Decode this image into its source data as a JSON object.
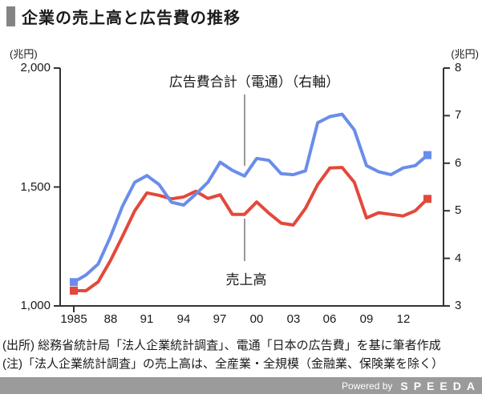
{
  "title": "企業の売上高と広告費の推移",
  "chart_data": {
    "type": "line",
    "x": [
      1985,
      1986,
      1987,
      1988,
      1989,
      1990,
      1991,
      1992,
      1993,
      1994,
      1995,
      1996,
      1997,
      1998,
      1999,
      2000,
      2001,
      2002,
      2003,
      2004,
      2005,
      2006,
      2007,
      2008,
      2009,
      2010,
      2011,
      2012,
      2013,
      2014
    ],
    "series": [
      {
        "name": "売上高",
        "axis": "left",
        "color": "#e2493b",
        "values": [
          1064,
          1064,
          1101,
          1190,
          1293,
          1400,
          1475,
          1465,
          1450,
          1458,
          1482,
          1452,
          1467,
          1385,
          1385,
          1437,
          1390,
          1348,
          1340,
          1410,
          1510,
          1580,
          1582,
          1520,
          1370,
          1392,
          1385,
          1378,
          1400,
          1450
        ]
      },
      {
        "name": "広告費合計（電通）（右軸）",
        "axis": "right",
        "color": "#6a8deb",
        "values": [
          3.5,
          3.65,
          3.88,
          4.45,
          5.1,
          5.6,
          5.74,
          5.55,
          5.18,
          5.12,
          5.35,
          5.6,
          6.02,
          5.85,
          5.73,
          6.1,
          6.06,
          5.78,
          5.76,
          5.84,
          6.85,
          6.98,
          7.03,
          6.7,
          5.95,
          5.82,
          5.76,
          5.9,
          5.95,
          6.17
        ]
      }
    ],
    "left_axis": {
      "unit": "(兆円)",
      "range": [
        1000,
        2000
      ],
      "tick_labels": [
        "2,000",
        "1,500",
        "1,000"
      ],
      "tick_values": [
        2000,
        1500,
        1000
      ]
    },
    "right_axis": {
      "unit": "(兆円)",
      "range": [
        3,
        8
      ],
      "tick_labels": [
        "8",
        "7",
        "6",
        "5",
        "4",
        "3"
      ],
      "tick_values": [
        8,
        7,
        6,
        5,
        4,
        3
      ]
    },
    "x_axis": {
      "tick_labels": [
        "1985",
        "88",
        "91",
        "94",
        "97",
        "00",
        "03",
        "06",
        "09",
        "12"
      ],
      "tick_years": [
        1985,
        1988,
        1991,
        1994,
        1997,
        2000,
        2003,
        2006,
        2009,
        2012
      ]
    },
    "annotations": [
      {
        "text": "広告費合計（電通）（右軸）"
      },
      {
        "text": "売上高"
      }
    ],
    "legend_position": "none",
    "grid": false
  },
  "footer": {
    "source": "(出所) 総務省統計局「法人企業統計調査」、電通「日本の広告費」を基に筆者作成",
    "note": "(注)「法人企業統計調査」の売上高は、全産業・全規模（金融業、保険業を除く）"
  },
  "brandbar": {
    "powered_by": "Powered by",
    "brand": "SPEEDA"
  },
  "colors": {
    "sales_line": "#e2493b",
    "ad_line": "#6a8deb",
    "axis": "#333333",
    "pointer_line": "#999999",
    "title_bullet": "#848484",
    "brand_bar": "#9b9b9b"
  }
}
